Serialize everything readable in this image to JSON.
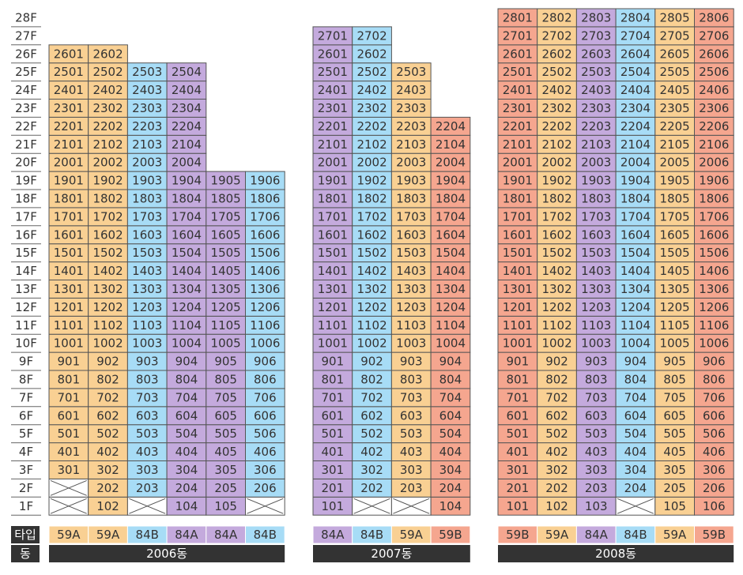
{
  "floors": [
    "28F",
    "27F",
    "26F",
    "25F",
    "24F",
    "23F",
    "22F",
    "21F",
    "20F",
    "19F",
    "18F",
    "17F",
    "16F",
    "15F",
    "14F",
    "13F",
    "12F",
    "11F",
    "10F",
    "9F",
    "8F",
    "7F",
    "6F",
    "5F",
    "4F",
    "3F",
    "2F",
    "1F"
  ],
  "type_label": "타입",
  "building_label": "동",
  "type_colors": {
    "59A": "#f9d093",
    "59B": "#f5a68f",
    "84A": "#c4aadd",
    "84B": "#a7dcf6"
  },
  "buildings": [
    {
      "name": "2006동",
      "columns": [
        {
          "type": "59A",
          "units": [
            null,
            null,
            "301",
            "401",
            "501",
            "601",
            "701",
            "801",
            "901",
            "1001",
            "1101",
            "1201",
            "1301",
            "1401",
            "1501",
            "1601",
            "1701",
            "1801",
            "1901",
            "2001",
            "2101",
            "2201",
            "2301",
            "2401",
            "2501",
            "2601"
          ]
        },
        {
          "type": "59A",
          "units": [
            "102",
            "202",
            "302",
            "402",
            "502",
            "602",
            "702",
            "802",
            "902",
            "1002",
            "1102",
            "1202",
            "1302",
            "1402",
            "1502",
            "1602",
            "1702",
            "1802",
            "1902",
            "2002",
            "2102",
            "2202",
            "2302",
            "2402",
            "2502",
            "2602"
          ]
        },
        {
          "type": "84B",
          "units": [
            null,
            "203",
            "303",
            "403",
            "503",
            "603",
            "703",
            "803",
            "903",
            "1003",
            "1103",
            "1203",
            "1303",
            "1403",
            "1503",
            "1603",
            "1703",
            "1803",
            "1903",
            "2003",
            "2103",
            "2203",
            "2303",
            "2403",
            "2503"
          ]
        },
        {
          "type": "84A",
          "units": [
            "104",
            "204",
            "304",
            "404",
            "504",
            "604",
            "704",
            "804",
            "904",
            "1004",
            "1104",
            "1204",
            "1304",
            "1404",
            "1504",
            "1604",
            "1704",
            "1804",
            "1904",
            "2004",
            "2104",
            "2204",
            "2304",
            "2404",
            "2504"
          ]
        },
        {
          "type": "84A",
          "units": [
            "105",
            "205",
            "305",
            "405",
            "505",
            "605",
            "705",
            "805",
            "905",
            "1005",
            "1105",
            "1205",
            "1305",
            "1405",
            "1505",
            "1605",
            "1705",
            "1805",
            "1905"
          ]
        },
        {
          "type": "84B",
          "units": [
            null,
            "206",
            "306",
            "406",
            "506",
            "606",
            "706",
            "806",
            "906",
            "1006",
            "1106",
            "1206",
            "1306",
            "1406",
            "1506",
            "1606",
            "1706",
            "1806",
            "1906"
          ]
        }
      ]
    },
    {
      "name": "2007동",
      "columns": [
        {
          "type": "84A",
          "units": [
            "101",
            "201",
            "301",
            "401",
            "501",
            "601",
            "701",
            "801",
            "901",
            "1001",
            "1101",
            "1201",
            "1301",
            "1401",
            "1501",
            "1601",
            "1701",
            "1801",
            "1901",
            "2001",
            "2101",
            "2201",
            "2301",
            "2401",
            "2501",
            "2601",
            "2701"
          ]
        },
        {
          "type": "84B",
          "units": [
            null,
            "202",
            "302",
            "402",
            "502",
            "602",
            "702",
            "802",
            "902",
            "1002",
            "1102",
            "1202",
            "1302",
            "1402",
            "1502",
            "1602",
            "1702",
            "1802",
            "1902",
            "2002",
            "2102",
            "2202",
            "2302",
            "2402",
            "2502",
            "2602",
            "2702"
          ]
        },
        {
          "type": "59A",
          "units": [
            null,
            "203",
            "303",
            "403",
            "503",
            "603",
            "703",
            "803",
            "903",
            "1003",
            "1103",
            "1203",
            "1303",
            "1403",
            "1503",
            "1603",
            "1703",
            "1803",
            "1903",
            "2003",
            "2103",
            "2203",
            "2303",
            "2403",
            "2503"
          ]
        },
        {
          "type": "59B",
          "units": [
            "104",
            "204",
            "304",
            "404",
            "504",
            "604",
            "704",
            "804",
            "904",
            "1004",
            "1104",
            "1204",
            "1304",
            "1404",
            "1504",
            "1604",
            "1704",
            "1804",
            "1904",
            "2004",
            "2104",
            "2204"
          ]
        }
      ]
    },
    {
      "name": "2008동",
      "columns": [
        {
          "type": "59B",
          "units": [
            "101",
            "201",
            "301",
            "401",
            "501",
            "601",
            "701",
            "801",
            "901",
            "1001",
            "1101",
            "1201",
            "1301",
            "1401",
            "1501",
            "1601",
            "1701",
            "1801",
            "1901",
            "2001",
            "2101",
            "2201",
            "2301",
            "2401",
            "2501",
            "2601",
            "2701",
            "2801"
          ]
        },
        {
          "type": "59A",
          "units": [
            "102",
            "202",
            "302",
            "402",
            "502",
            "602",
            "702",
            "802",
            "902",
            "1002",
            "1102",
            "1202",
            "1302",
            "1402",
            "1502",
            "1602",
            "1702",
            "1802",
            "1902",
            "2002",
            "2102",
            "2202",
            "2302",
            "2402",
            "2502",
            "2602",
            "2702",
            "2802"
          ]
        },
        {
          "type": "84A",
          "units": [
            "103",
            "203",
            "303",
            "403",
            "503",
            "603",
            "703",
            "803",
            "903",
            "1003",
            "1103",
            "1203",
            "1303",
            "1403",
            "1503",
            "1603",
            "1703",
            "1803",
            "1903",
            "2003",
            "2103",
            "2203",
            "2303",
            "2403",
            "2503",
            "2603",
            "2703",
            "2803"
          ]
        },
        {
          "type": "84B",
          "units": [
            null,
            "204",
            "304",
            "404",
            "504",
            "604",
            "704",
            "804",
            "904",
            "1004",
            "1104",
            "1204",
            "1304",
            "1404",
            "1504",
            "1604",
            "1704",
            "1804",
            "1904",
            "2004",
            "2104",
            "2204",
            "2304",
            "2404",
            "2504",
            "2604",
            "2704",
            "2804"
          ]
        },
        {
          "type": "59A",
          "units": [
            "105",
            "205",
            "305",
            "405",
            "505",
            "605",
            "705",
            "805",
            "905",
            "1005",
            "1105",
            "1205",
            "1305",
            "1405",
            "1505",
            "1605",
            "1705",
            "1805",
            "1905",
            "2005",
            "2105",
            "2205",
            "2305",
            "2405",
            "2505",
            "2605",
            "2705",
            "2805"
          ]
        },
        {
          "type": "59B",
          "units": [
            "106",
            "206",
            "306",
            "406",
            "506",
            "606",
            "706",
            "806",
            "906",
            "1006",
            "1106",
            "1206",
            "1306",
            "1406",
            "1506",
            "1606",
            "1706",
            "1806",
            "1906",
            "2006",
            "2106",
            "2206",
            "2306",
            "2406",
            "2506",
            "2606",
            "2706",
            "2806"
          ]
        }
      ]
    }
  ]
}
